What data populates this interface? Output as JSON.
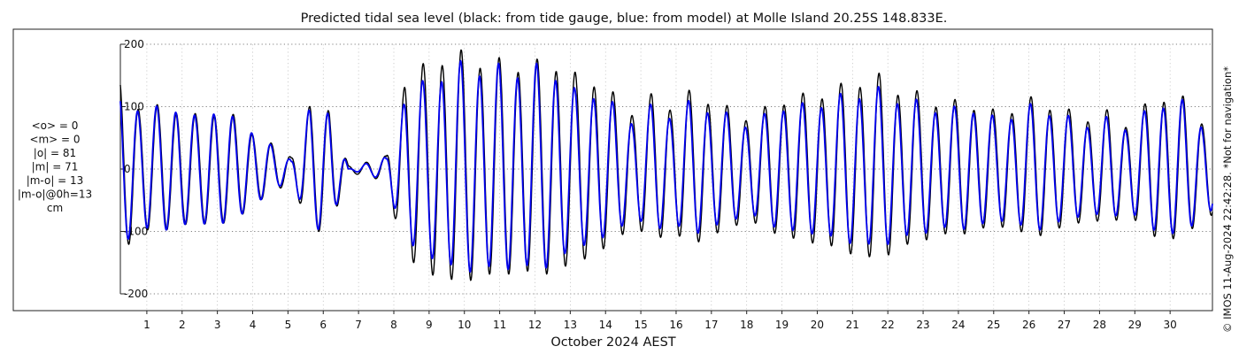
{
  "chart_data": {
    "type": "line",
    "title": "Predicted tidal sea level (black: from tide gauge, blue: from model) at Molle Island 20.25S 148.833E.",
    "xlabel": "October 2024 AEST",
    "ylabel": "",
    "ylim": [
      -200,
      200
    ],
    "yticks": [
      -200,
      -100,
      0,
      100,
      200
    ],
    "xlim": [
      0.25,
      31.2
    ],
    "xticks": [
      "1",
      "2",
      "3",
      "4",
      "5",
      "6",
      "7",
      "8",
      "9",
      "10",
      "11",
      "12",
      "13",
      "14",
      "15",
      "16",
      "17",
      "18",
      "19",
      "20",
      "21",
      "22",
      "23",
      "24",
      "25",
      "26",
      "27",
      "28",
      "29",
      "30"
    ],
    "grid": true,
    "series": [
      {
        "name": "tide gauge",
        "color": "#000000",
        "unit": "cm",
        "high_tide_peaks": [
          135,
          100,
          97,
          95,
          83,
          92,
          82,
          58,
          38,
          20,
          98,
          100,
          5,
          12,
          20,
          145,
          160,
          178,
          180,
          172,
          168,
          165,
          166,
          167,
          145,
          140,
          115,
          90,
          115,
          100,
          120,
          110,
          95,
          82,
          95,
          110,
          115,
          120,
          130,
          140,
          145,
          125,
          118,
          105,
          105,
          100,
          90,
          95,
          110,
          100,
          90,
          80,
          90,
          70,
          100,
          115,
          110,
          75
        ]
      },
      {
        "name": "model",
        "color": "#0000ee",
        "unit": "cm",
        "high_tide_peaks": [
          120,
          97,
          95,
          97,
          80,
          95,
          78,
          60,
          35,
          15,
          95,
          95,
          0,
          10,
          18,
          118,
          135,
          150,
          165,
          158,
          160,
          155,
          160,
          150,
          120,
          120,
          100,
          75,
          100,
          85,
          105,
          95,
          85,
          70,
          85,
          100,
          100,
          105,
          115,
          120,
          125,
          110,
          105,
          95,
          95,
          95,
          80,
          85,
          100,
          90,
          80,
          70,
          80,
          65,
          90,
          105,
          105,
          68
        ]
      }
    ]
  },
  "stats": {
    "lines": [
      "<o> = 0",
      "<m> = 0",
      "|o| = 81",
      "|m| = 71",
      "|m-o| = 13",
      "|m-o|@0h=13",
      "cm"
    ]
  },
  "credit": "© IMOS 11-Aug-2024 22:42:28. *Not for navigation*"
}
